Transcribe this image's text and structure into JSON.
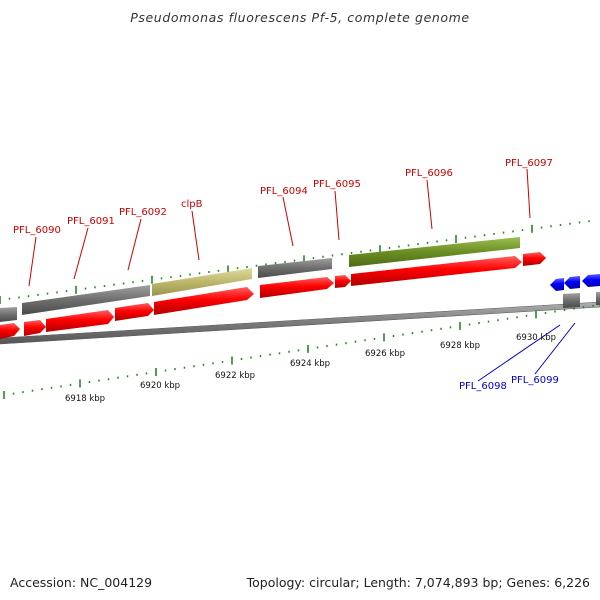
{
  "title": "Pseudomonas fluorescens Pf-5, complete genome",
  "accession": "Accession: NC_004129",
  "summary": "Topology: circular; Length: 7,074,893 bp; Genes: 6,226",
  "colors": {
    "forward_gene": "#ff0000",
    "reverse_gene": "#0000ff",
    "backbone": "#888888",
    "tick": "#228b22",
    "forward_label": "#cc0000",
    "reverse_label": "#0000cc",
    "gray_bar": "#6e6e6e",
    "khaki_bar": "#bdb76b",
    "olive_bar": "#6b8e23"
  },
  "kbp_labels": [
    "6918 kbp",
    "6920 kbp",
    "6922 kbp",
    "6924 kbp",
    "6926 kbp",
    "6928 kbp",
    "6930 kbp"
  ],
  "forward_labels": [
    "PFL_6090",
    "PFL_6091",
    "PFL_6092",
    "clpB",
    "PFL_6094",
    "PFL_6095",
    "PFL_6096",
    "PFL_6097"
  ],
  "reverse_labels": [
    "PFL_6098",
    "PFL_6099"
  ]
}
